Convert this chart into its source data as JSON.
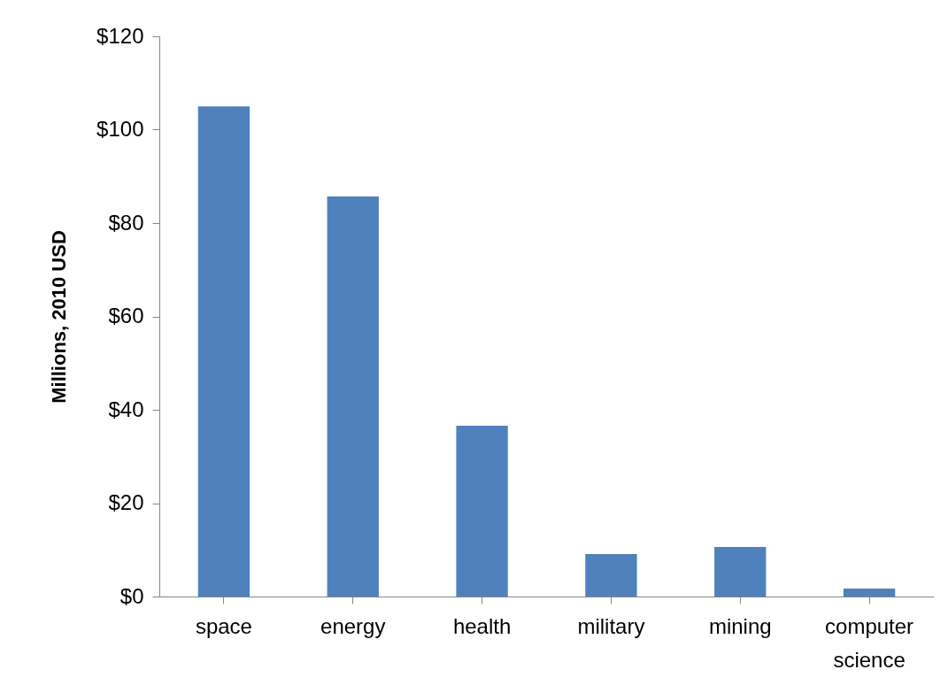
{
  "chart_data": {
    "type": "bar",
    "ylabel": "Millions, 2010 USD",
    "categories": [
      "space",
      "energy",
      "health",
      "military",
      "mining",
      "computer science"
    ],
    "values": [
      105,
      85.7,
      36.6,
      9.1,
      10.6,
      1.7
    ],
    "color": "#4f81bd",
    "ylim": [
      0,
      120
    ],
    "yticks": [
      {
        "value": 0,
        "label": "$0"
      },
      {
        "value": 20,
        "label": "$20"
      },
      {
        "value": 40,
        "label": "$40"
      },
      {
        "value": 60,
        "label": "$60"
      },
      {
        "value": 80,
        "label": "$80"
      },
      {
        "value": 100,
        "label": "$100"
      },
      {
        "value": 120,
        "label": "$120"
      }
    ],
    "grid": false,
    "legend": false
  }
}
